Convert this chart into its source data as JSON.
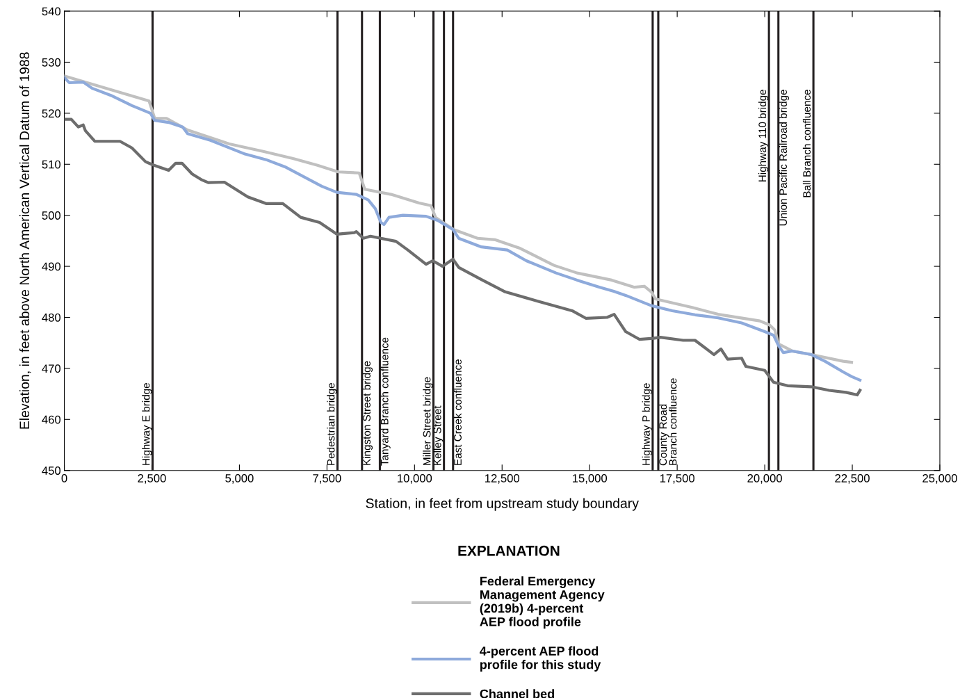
{
  "chart_data": {
    "type": "line",
    "xlabel": "Station, in feet from upstream study boundary",
    "ylabel": "Elevation, in feet above North American Vertical Datum of 1988",
    "legend_title": "EXPLANATION",
    "legend": "bottom",
    "grid": false,
    "marker": "none",
    "line_style": "solid",
    "xlim": [
      0,
      25000
    ],
    "ylim": [
      450,
      540
    ],
    "xticks": [
      0,
      {
        "value": 2500,
        "label": "2,500"
      },
      {
        "value": 5000,
        "label": "5,000"
      },
      {
        "value": 7500,
        "label": "7,500"
      },
      {
        "value": 10000,
        "label": "10,000"
      },
      {
        "value": 12500,
        "label": "12,500"
      },
      {
        "value": 15000,
        "label": "15,000"
      },
      {
        "value": 17500,
        "label": "17,500"
      },
      {
        "value": 20000,
        "label": "20,000"
      },
      {
        "value": 22500,
        "label": "22,500"
      },
      {
        "value": 25000,
        "label": "25,000"
      }
    ],
    "yticks": [
      450,
      460,
      470,
      480,
      490,
      500,
      510,
      520,
      530,
      540
    ],
    "series": [
      {
        "name": "Federal Emergency\nManagement Agency\n(2019b) 4-percent\nAEP flood profile",
        "color": "#c0c0c0",
        "x": [
          0,
          2420,
          2580,
          2920,
          3520,
          4710,
          5700,
          6550,
          7230,
          7820,
          8420,
          8580,
          9330,
          10130,
          10470,
          10600,
          11120,
          11800,
          12310,
          12990,
          13980,
          14640,
          15630,
          16280,
          16560,
          16760,
          16880,
          17950,
          18670,
          19860,
          20140,
          20290,
          20390,
          20790,
          21330,
          22240,
          22480
        ],
        "values": [
          527.3,
          522.4,
          519.0,
          519.0,
          516.7,
          514.0,
          512.5,
          511.1,
          509.8,
          508.5,
          508.3,
          505.1,
          504.1,
          502.4,
          501.9,
          499.6,
          497.2,
          495.5,
          495.2,
          493.6,
          490.2,
          488.7,
          487.3,
          485.9,
          486.1,
          485.0,
          483.6,
          481.9,
          480.6,
          479.3,
          478.5,
          477.5,
          474.8,
          473.4,
          472.7,
          471.4,
          471.2
        ]
      },
      {
        "name": "4-percent AEP flood\nprofile for this study",
        "color": "#8eaadb",
        "x": [
          0,
          140,
          540,
          790,
          1330,
          1930,
          2460,
          2580,
          2980,
          3380,
          3520,
          4170,
          5160,
          5760,
          6300,
          7350,
          7780,
          8340,
          8680,
          8880,
          9040,
          9130,
          9270,
          9670,
          10330,
          10660,
          11100,
          11260,
          11910,
          12650,
          13190,
          14040,
          14640,
          15290,
          15690,
          16030,
          16760,
          17360,
          18010,
          18670,
          19340,
          20000,
          20250,
          20390,
          20530,
          20790,
          21330,
          21720,
          22240,
          22480,
          22720
        ],
        "values": [
          527.0,
          526.0,
          526.1,
          524.9,
          523.5,
          521.5,
          520.0,
          518.6,
          518.2,
          517.3,
          516.0,
          514.7,
          512.0,
          510.9,
          509.5,
          505.7,
          504.5,
          504.1,
          503.0,
          501.3,
          498.6,
          498.2,
          499.6,
          500.0,
          499.8,
          499.0,
          497.2,
          495.5,
          493.8,
          493.2,
          491.1,
          488.7,
          487.3,
          485.9,
          485.1,
          484.3,
          482.3,
          481.3,
          480.5,
          479.9,
          478.9,
          477.2,
          476.5,
          474.5,
          473.1,
          473.4,
          472.7,
          471.4,
          469.3,
          468.4,
          467.7
        ]
      },
      {
        "name": "Channel bed",
        "color": "#6d6d6d",
        "x": [
          0,
          200,
          400,
          540,
          600,
          870,
          1590,
          1930,
          2320,
          2520,
          2980,
          3180,
          3360,
          3650,
          3910,
          4110,
          4570,
          5240,
          5760,
          6240,
          6750,
          7290,
          7780,
          8280,
          8340,
          8540,
          8740,
          9470,
          9810,
          10330,
          10520,
          10800,
          11100,
          11260,
          11910,
          12590,
          13500,
          14500,
          14900,
          15500,
          15700,
          16030,
          16420,
          16820,
          17020,
          17670,
          18010,
          18550,
          18750,
          18940,
          19340,
          19460,
          20000,
          20250,
          20650,
          21330,
          21840,
          22320,
          22640,
          22720
        ],
        "values": [
          518.8,
          518.8,
          517.3,
          517.7,
          516.6,
          514.5,
          514.5,
          513.2,
          510.5,
          509.9,
          508.8,
          510.2,
          510.2,
          508.1,
          507.0,
          506.4,
          506.5,
          503.6,
          502.3,
          502.3,
          499.6,
          498.6,
          496.3,
          496.6,
          496.8,
          495.5,
          495.9,
          494.9,
          493.2,
          490.4,
          491.1,
          490.0,
          491.4,
          489.8,
          487.4,
          485.0,
          483.2,
          481.3,
          479.8,
          480.0,
          480.6,
          477.2,
          475.7,
          475.9,
          476.1,
          475.5,
          475.5,
          472.7,
          473.8,
          471.8,
          472.0,
          470.4,
          469.6,
          467.3,
          466.6,
          466.4,
          465.7,
          465.3,
          464.8,
          465.7
        ]
      }
    ],
    "ref_lines": [
      {
        "axis": "x",
        "value": 2520,
        "label": "Highway E bridge",
        "color": "#231f20"
      },
      {
        "axis": "x",
        "value": 7800,
        "label": "Pedestrian bridge",
        "color": "#231f20"
      },
      {
        "axis": "x",
        "value": 8500,
        "label": "Kingston Street bridge",
        "color": "#231f20"
      },
      {
        "axis": "x",
        "value": 9010,
        "label": "Tanyard Branch confluence",
        "color": "#231f20"
      },
      {
        "axis": "x",
        "value": 10540,
        "label": "Miller Street bridge",
        "color": "#231f20"
      },
      {
        "axis": "x",
        "value": 10840,
        "label": "Kelley Street",
        "color": "#231f20"
      },
      {
        "axis": "x",
        "value": 11100,
        "label": "East Creek confluence",
        "color": "#231f20"
      },
      {
        "axis": "x",
        "value": 16800,
        "label": "Highway P bridge",
        "color": "#231f20"
      },
      {
        "axis": "x",
        "value": 16960,
        "label": "County Road\nBranch confluence",
        "color": "#231f20"
      },
      {
        "axis": "x",
        "value": 20120,
        "label": "Highway 110 bridge",
        "color": "#231f20"
      },
      {
        "axis": "x",
        "value": 20390,
        "label": "Union Pacific Railroad bridge",
        "color": "#231f20"
      },
      {
        "axis": "x",
        "value": 21390,
        "label": "Ball Branch confluence",
        "color": "#231f20"
      }
    ]
  }
}
